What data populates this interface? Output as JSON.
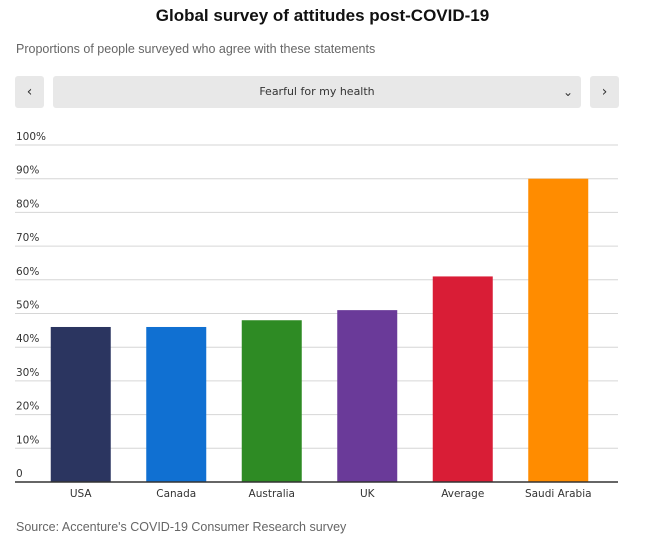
{
  "title": "Global survey of attitudes post-COVID-19",
  "subtitle": "Proportions of people surveyed who agree with these statements",
  "controls": {
    "prev_icon": "chevron-left-icon",
    "next_icon": "chevron-right-icon",
    "select_value": "Fearful for my health"
  },
  "source": "Source:  Accenture's COVID-19 Consumer Research survey",
  "chart_data": {
    "type": "bar",
    "categories": [
      "USA",
      "Canada",
      "Australia",
      "UK",
      "Average",
      "Saudi Arabia"
    ],
    "values": [
      46,
      46,
      48,
      51,
      61,
      90
    ],
    "colors": [
      "#2b3560",
      "#1070d2",
      "#2e8b24",
      "#6a3a99",
      "#d91d36",
      "#ff8c00"
    ],
    "ylim": [
      0,
      100
    ],
    "yticks": [
      0,
      10,
      20,
      30,
      40,
      50,
      60,
      70,
      80,
      90,
      100
    ],
    "ytick_labels": [
      "0",
      "10%",
      "20%",
      "30%",
      "40%",
      "50%",
      "60%",
      "70%",
      "80%",
      "90%",
      "100%"
    ],
    "grid": true
  }
}
